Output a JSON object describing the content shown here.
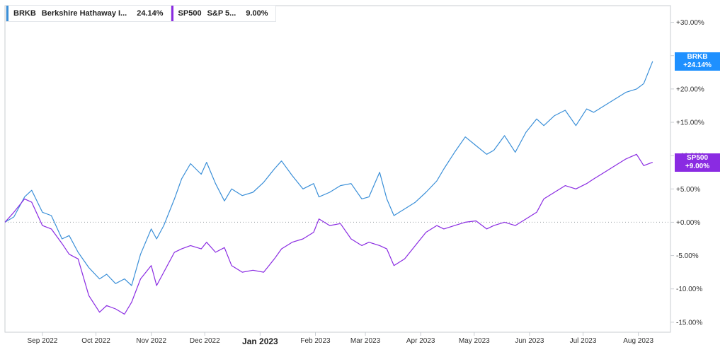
{
  "legend": [
    {
      "symbol": "BRKB",
      "name": "Berkshire Hathaway I...",
      "value": "24.14%",
      "color": "#3a8fd8"
    },
    {
      "symbol": "SP500",
      "name": "S&P 5...",
      "value": "9.00%",
      "color": "#8a2be2"
    }
  ],
  "tags": [
    {
      "line1": "BRKB",
      "line2": "+24.14%",
      "color": "#1e90ff"
    },
    {
      "line1": "SP500",
      "line2": "+9.00%",
      "color": "#8a2be2"
    }
  ],
  "chart_data": {
    "type": "line",
    "x": [
      "2022-08-11",
      "2022-08-16",
      "2022-08-22",
      "2022-08-26",
      "2022-09-01",
      "2022-09-06",
      "2022-09-12",
      "2022-09-16",
      "2022-09-21",
      "2022-09-27",
      "2022-10-03",
      "2022-10-07",
      "2022-10-12",
      "2022-10-17",
      "2022-10-21",
      "2022-10-26",
      "2022-11-01",
      "2022-11-04",
      "2022-11-08",
      "2022-11-14",
      "2022-11-18",
      "2022-11-23",
      "2022-11-29",
      "2022-12-02",
      "2022-12-07",
      "2022-12-12",
      "2022-12-16",
      "2022-12-22",
      "2022-12-28",
      "2023-01-03",
      "2023-01-09",
      "2023-01-13",
      "2023-01-19",
      "2023-01-25",
      "2023-01-31",
      "2023-02-03",
      "2023-02-09",
      "2023-02-15",
      "2023-02-21",
      "2023-02-27",
      "2023-03-03",
      "2023-03-09",
      "2023-03-13",
      "2023-03-17",
      "2023-03-23",
      "2023-03-29",
      "2023-04-04",
      "2023-04-10",
      "2023-04-14",
      "2023-04-20",
      "2023-04-26",
      "2023-05-02",
      "2023-05-08",
      "2023-05-12",
      "2023-05-18",
      "2023-05-24",
      "2023-05-30",
      "2023-06-05",
      "2023-06-09",
      "2023-06-15",
      "2023-06-21",
      "2023-06-27",
      "2023-07-03",
      "2023-07-07",
      "2023-07-13",
      "2023-07-19",
      "2023-07-25",
      "2023-07-31",
      "2023-08-04",
      "2023-08-09"
    ],
    "series": [
      {
        "name": "BRKB",
        "color": "#3a8fd8",
        "values": [
          0,
          0.8,
          3.8,
          4.8,
          1.5,
          1.0,
          -2.5,
          -2.0,
          -4.5,
          -6.8,
          -8.5,
          -7.8,
          -9.2,
          -8.5,
          -9.5,
          -4.8,
          -1.0,
          -2.5,
          -0.5,
          3.5,
          6.5,
          8.8,
          7.2,
          9.0,
          5.8,
          3.2,
          5.0,
          4.0,
          4.5,
          6.0,
          8.0,
          9.2,
          7.0,
          5.0,
          5.8,
          3.8,
          4.5,
          5.5,
          5.8,
          3.5,
          3.8,
          7.5,
          3.5,
          1.0,
          2.0,
          3.0,
          4.5,
          6.2,
          8.0,
          10.5,
          12.8,
          11.5,
          10.2,
          10.8,
          13.0,
          10.5,
          13.5,
          15.5,
          14.5,
          16.0,
          16.8,
          14.5,
          17.0,
          16.5,
          17.5,
          18.5,
          19.5,
          20.0,
          20.8,
          24.14
        ]
      },
      {
        "name": "SP500",
        "color": "#8a2be2",
        "values": [
          0,
          1.5,
          3.5,
          3.0,
          -0.5,
          -1.0,
          -3.2,
          -4.8,
          -5.5,
          -11.0,
          -13.5,
          -12.5,
          -13.0,
          -13.8,
          -12.0,
          -8.5,
          -6.5,
          -9.5,
          -7.5,
          -4.5,
          -4.0,
          -3.5,
          -4.0,
          -3.0,
          -4.5,
          -3.8,
          -6.5,
          -7.5,
          -7.2,
          -7.5,
          -5.5,
          -4.0,
          -3.0,
          -2.5,
          -1.5,
          0.5,
          -0.5,
          -0.2,
          -2.5,
          -3.5,
          -3.0,
          -3.5,
          -4.0,
          -6.5,
          -5.5,
          -3.5,
          -1.5,
          -0.5,
          -1.0,
          -0.5,
          0.0,
          0.2,
          -1.0,
          -0.5,
          0.0,
          -0.5,
          0.5,
          1.5,
          3.5,
          4.5,
          5.5,
          5.0,
          5.8,
          6.5,
          7.5,
          8.5,
          9.5,
          10.2,
          8.5,
          9.0
        ]
      }
    ],
    "xticks": [
      {
        "date": "2022-09-01",
        "label": "Sep 2022"
      },
      {
        "date": "2022-10-01",
        "label": "Oct 2022"
      },
      {
        "date": "2022-11-01",
        "label": "Nov 2022"
      },
      {
        "date": "2022-12-01",
        "label": "Dec 2022"
      },
      {
        "date": "2023-01-01",
        "label": "Jan 2023",
        "bold": true
      },
      {
        "date": "2023-02-01",
        "label": "Feb 2023"
      },
      {
        "date": "2023-03-01",
        "label": "Mar 2023"
      },
      {
        "date": "2023-04-01",
        "label": "Apr 2023"
      },
      {
        "date": "2023-05-01",
        "label": "May 2023"
      },
      {
        "date": "2023-06-01",
        "label": "Jun 2023"
      },
      {
        "date": "2023-07-01",
        "label": "Jul 2023"
      },
      {
        "date": "2023-08-01",
        "label": "Aug 2023"
      }
    ],
    "yticks": [
      {
        "value": 30,
        "label": "+30.00%"
      },
      {
        "value": 25,
        "label": "+25.00%"
      },
      {
        "value": 20,
        "label": "+20.00%"
      },
      {
        "value": 15,
        "label": "+15.00%"
      },
      {
        "value": 10,
        "label": "+10.00%"
      },
      {
        "value": 5,
        "label": "+5.00%"
      },
      {
        "value": 0,
        "label": "+0.00%"
      },
      {
        "value": -5,
        "label": "-5.00%"
      },
      {
        "value": -10,
        "label": "-10.00%"
      },
      {
        "value": -15,
        "label": "-15.00%"
      }
    ],
    "ylim": [
      -16.5,
      32.5
    ],
    "xlim": [
      "2022-08-11",
      "2023-08-19"
    ],
    "grid": false,
    "legend": "top-left"
  }
}
